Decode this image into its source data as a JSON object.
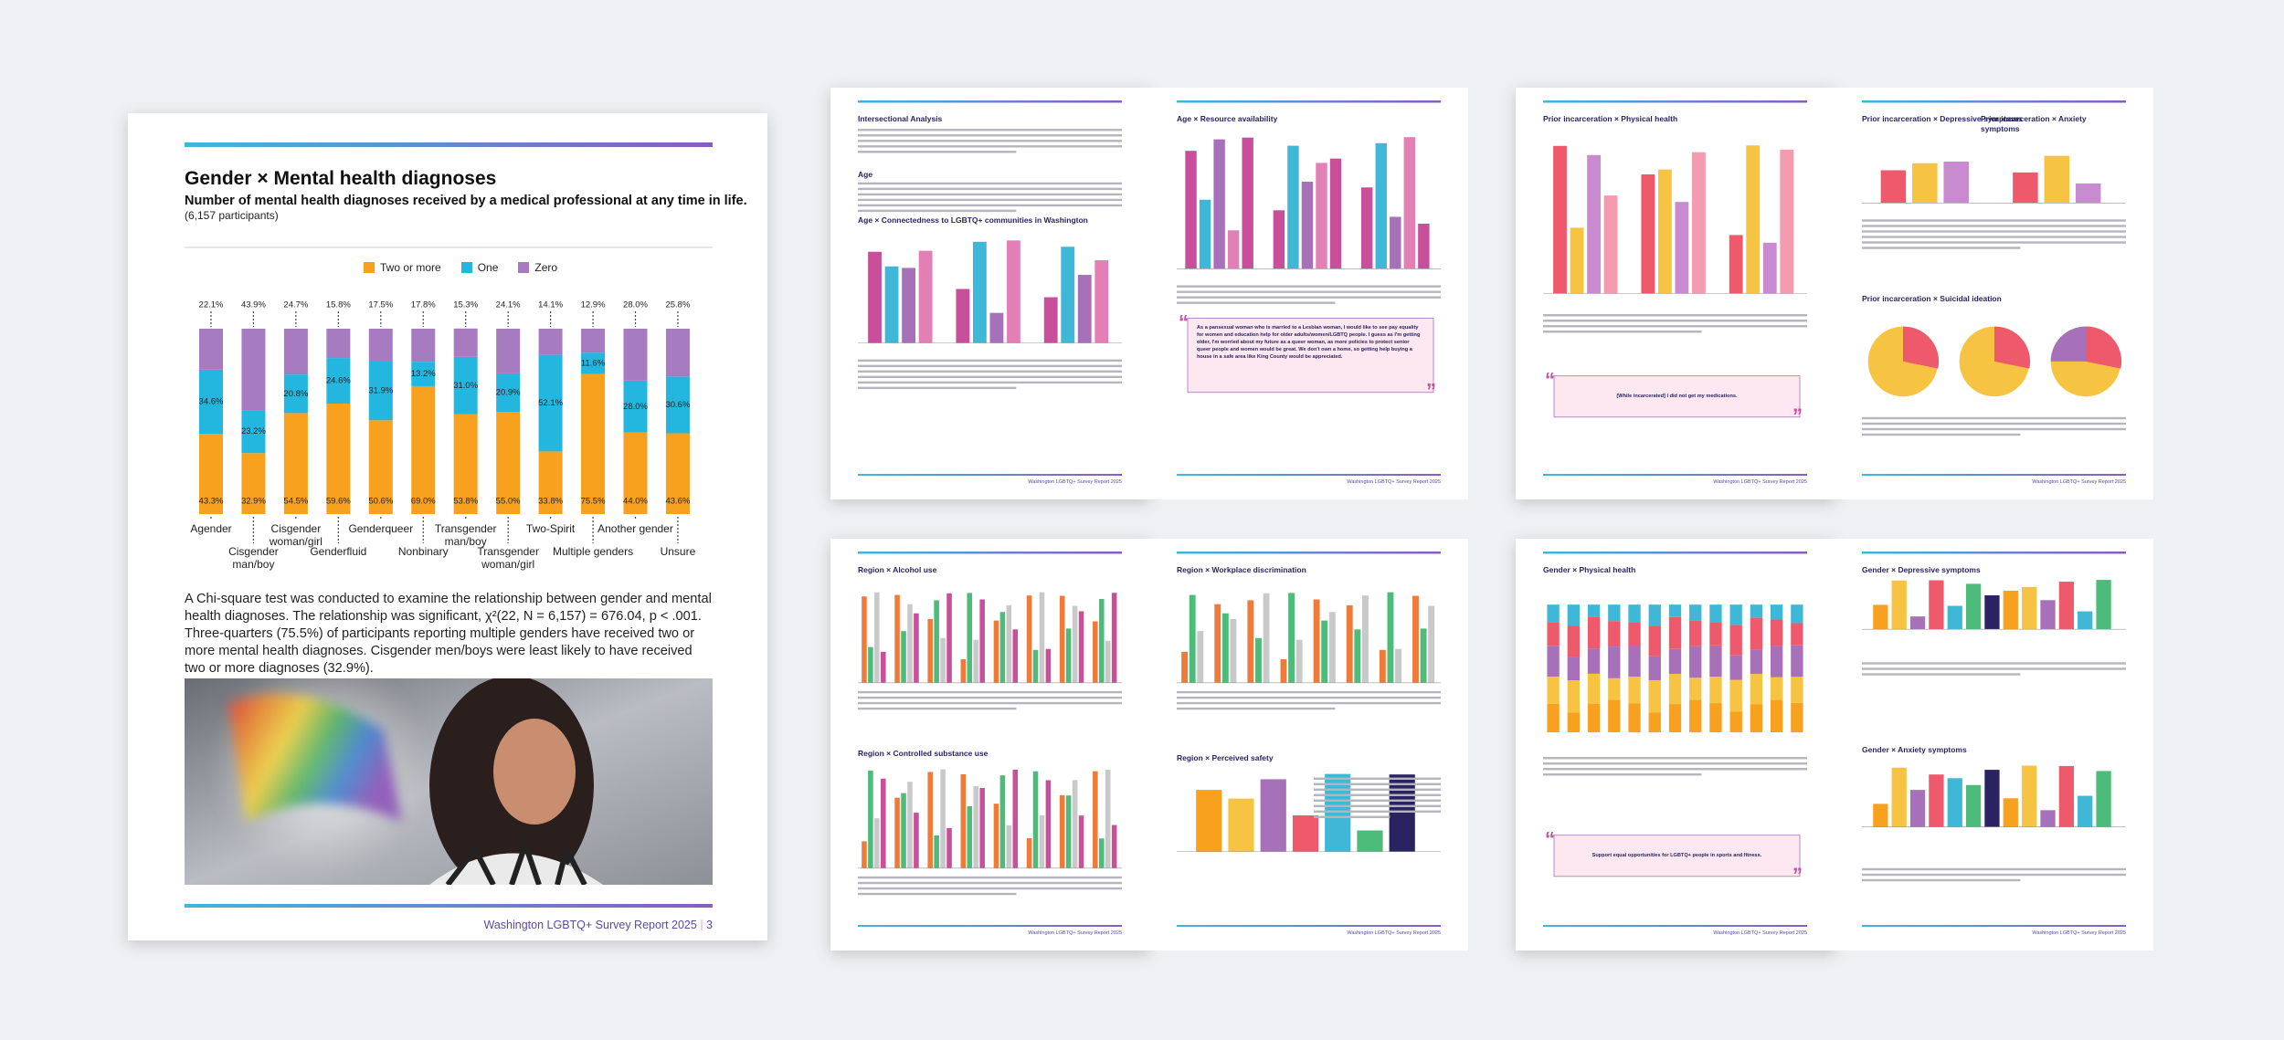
{
  "chart_data": {
    "type": "bar",
    "stacked": true,
    "title": "Gender × Mental health diagnoses",
    "subtitle": "Number of mental health diagnoses received by a medical professional at any time in life.",
    "note": "(6,157 participants)",
    "categories": [
      "Agender",
      "Cisgender man/boy",
      "Cisgender woman/girl",
      "Genderfluid",
      "Genderqueer",
      "Nonbinary",
      "Transgender man/boy",
      "Transgender woman/girl",
      "Two-Spirit",
      "Multiple genders",
      "Another gender",
      "Unsure"
    ],
    "series": [
      {
        "name": "Two or more",
        "color": "#f7a11f",
        "values": [
          43.3,
          32.9,
          54.5,
          59.6,
          50.6,
          69.0,
          53.8,
          55.0,
          33.8,
          75.5,
          44.0,
          43.6
        ],
        "value_labels": [
          "43.3%",
          "32.9%",
          "54.5%",
          "59.6%",
          "50.6%",
          "69.0%",
          "53.8%",
          "55.0%",
          "33.8%",
          "75.5%",
          "44.0%",
          "43.6%"
        ]
      },
      {
        "name": "One",
        "color": "#23b7e0",
        "values": [
          34.6,
          23.2,
          20.8,
          24.6,
          31.9,
          13.2,
          31.0,
          20.9,
          52.1,
          11.6,
          28.0,
          30.6
        ],
        "value_labels": [
          "34.6%",
          "23.2%",
          "20.8%",
          "24.6%",
          "31.9%",
          "13.2%",
          "31.0%",
          "20.9%",
          "52.1%",
          "11.6%",
          "28.0%",
          "30.6%"
        ]
      },
      {
        "name": "Zero",
        "color": "#a67bc0",
        "values": [
          22.1,
          43.9,
          24.7,
          15.8,
          17.5,
          17.8,
          15.3,
          24.1,
          14.1,
          12.9,
          28.0,
          25.8
        ],
        "value_labels": [
          "22.1%",
          "43.9%",
          "24.7%",
          "15.8%",
          "17.5%",
          "17.8%",
          "15.3%",
          "24.1%",
          "14.1%",
          "12.9%",
          "28.0%",
          "25.8%"
        ]
      }
    ],
    "ylim": [
      0,
      100
    ]
  },
  "page": {
    "body": "A Chi-square test was conducted to examine the relationship between gender and mental health diagnoses. The relationship was significant, χ²(22, N = 6,157) = 676.04, p < .001. Three-quarters (75.5%) of participants reporting multiple genders have received two or more mental health diagnoses. Cisgender men/boys were least likely to have received two or more diagnoses (32.9%).",
    "footer": "Washington LGBTQ+ Survey Report 2025",
    "page_number": "3"
  },
  "spreads": [
    {
      "pages": [
        {
          "headings": [
            "Intersectional Analysis",
            "Age",
            "Age × Connectedness to LGBTQ+ communities in Washington"
          ]
        },
        {
          "headings": [
            "Age × Resource availability"
          ],
          "quote": "As a pansexual woman who is married to a Lesbian woman, I would like to see pay equality for women and education help for older adults/women/LGBTQ people. I guess as I'm getting older, I'm worried about my future as a queer woman, as more policies to protect senior queer people and women would be great. We don't own a home, so getting help buying a house in a safe area like King County would be appreciated."
        }
      ]
    },
    {
      "pages": [
        {
          "headings": [
            "Prior incarceration × Physical health"
          ],
          "quote": "[While incarcerated] I did not get my medications."
        },
        {
          "headings": [
            "Prior incarceration × Depressive symptoms",
            "Prior incarceration × Anxiety symptoms",
            "Prior incarceration × Suicidal ideation"
          ]
        }
      ]
    },
    {
      "pages": [
        {
          "headings": [
            "Region × Alcohol use",
            "Region × Controlled substance use"
          ]
        },
        {
          "headings": [
            "Region × Workplace discrimination",
            "Region × Perceived safety"
          ]
        }
      ]
    },
    {
      "pages": [
        {
          "headings": [
            "Gender × Physical health"
          ],
          "quote": "Support equal opportunities for LGBTQ+ people in sports and fitness."
        },
        {
          "headings": [
            "Gender × Depressive symptoms",
            "Gender × Anxiety symptoms"
          ]
        }
      ]
    }
  ]
}
